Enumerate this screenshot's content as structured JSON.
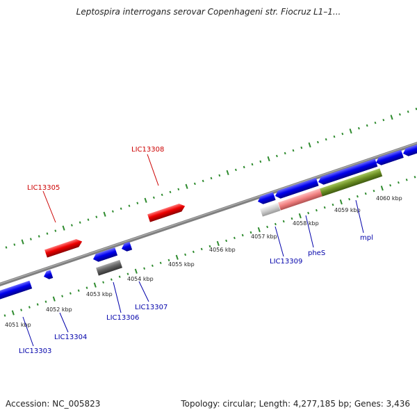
{
  "title": "Leptospira interrogans serovar Copenhageni str. Fiocruz L1–1...",
  "footer": {
    "accession": "Accession: NC_005823",
    "topology": "Topology: circular; Length: 4,277,185 bp; Genes: 3,436"
  },
  "colors": {
    "forward_gene": "#ff0000",
    "reverse_gene": "#0000ee",
    "gray_feature": "#666666",
    "phes": "#f08080",
    "mpl": "#6b8e23",
    "backbone": "#808080",
    "ticks": "#2e8b2e",
    "forward_label": "#cc0000",
    "reverse_label": "#0000aa"
  },
  "scale": {
    "tick_labels": [
      "4051 kbp",
      "4052 kbp",
      "4053 kbp",
      "4054 kbp",
      "4055 kbp",
      "4056 kbp",
      "4057 kbp",
      "4058 kbp",
      "4059 kbp",
      "4060 kbp"
    ]
  },
  "genes": {
    "forward": [
      "LIC13305",
      "LIC13308"
    ],
    "reverse": [
      "LIC13303",
      "LIC13304",
      "LIC13306",
      "LIC13307",
      "LIC13309",
      "pheS",
      "mpl"
    ]
  }
}
